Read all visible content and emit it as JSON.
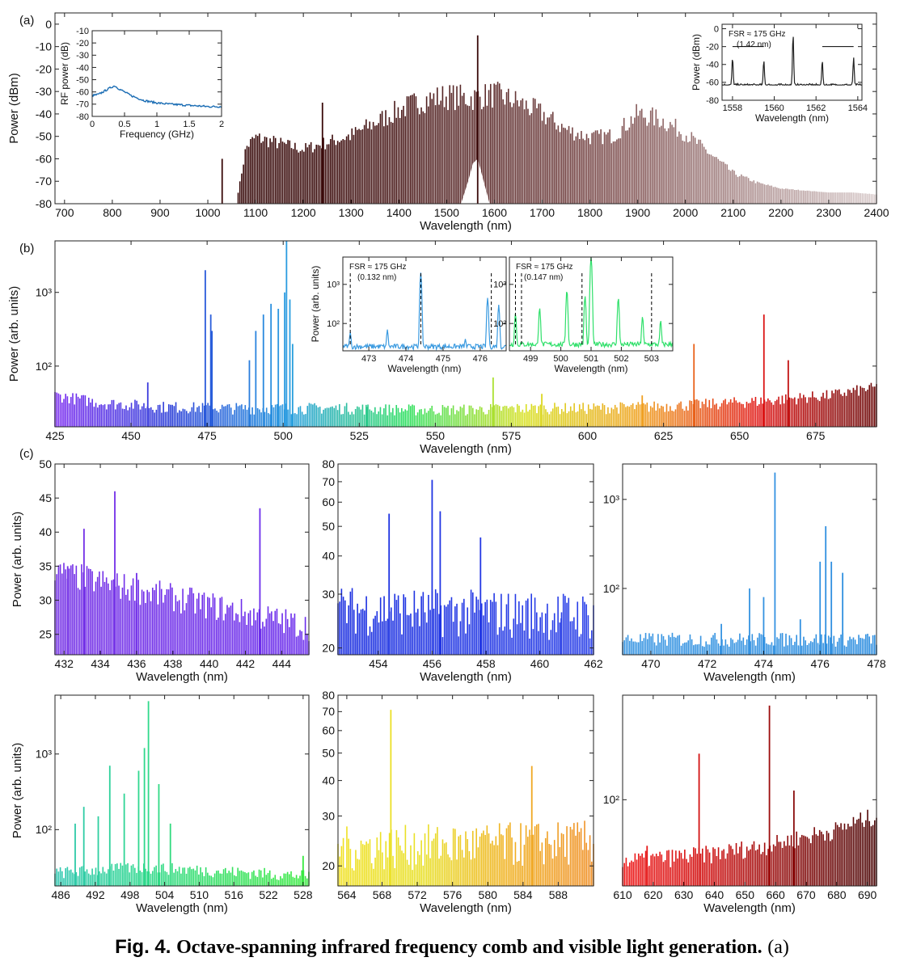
{
  "figure": {
    "caption_label": "Fig. 4.",
    "caption_title": "Octave-spanning infrared frequency comb and visible light generation.",
    "caption_tail": "(a)"
  },
  "chart_data": [
    {
      "id": "a",
      "panel_label": "(a)",
      "type": "line",
      "xlabel": "Wavelength (nm)",
      "ylabel": "Power (dBm)",
      "xlim": [
        680,
        2400
      ],
      "ylim": [
        -80,
        5
      ],
      "xticks": [
        700,
        800,
        900,
        1000,
        1100,
        1200,
        1300,
        1400,
        1500,
        1600,
        1700,
        1800,
        1900,
        2000,
        2100,
        2200,
        2300,
        2400
      ],
      "yticks": [
        -80,
        -70,
        -60,
        -50,
        -40,
        -30,
        -20,
        -10,
        0
      ],
      "grid": false,
      "color_gradient": [
        "#2e0505",
        "#3a0a0a",
        "#7a4a4a",
        "#d9cccc"
      ],
      "envelope": {
        "x": [
          1060,
          1080,
          1100,
          1200,
          1300,
          1400,
          1450,
          1500,
          1550,
          1600,
          1650,
          1700,
          1750,
          1800,
          1850,
          1900,
          1950,
          2000,
          2050,
          2100,
          2150,
          2200,
          2250,
          2300,
          2350,
          2400
        ],
        "y": [
          -80,
          -52,
          -47,
          -53,
          -46,
          -33,
          -28,
          -26,
          -27,
          -25,
          -29,
          -35,
          -43,
          -47,
          -46,
          -35,
          -38,
          -45,
          -55,
          -65,
          -70,
          -73,
          -74,
          -75,
          -75,
          -76
        ]
      },
      "floor": -75,
      "spikes": [
        {
          "x": 1030,
          "y": -60
        },
        {
          "x": 1240,
          "y": -35
        },
        {
          "x": 1565,
          "y": -5
        }
      ],
      "pump_hump": {
        "x": [
          1530,
          1545,
          1555,
          1565,
          1575,
          1590
        ],
        "y": [
          -80,
          -70,
          -62,
          -60,
          -68,
          -80
        ]
      },
      "insets": [
        {
          "id": "a-rf",
          "type": "line",
          "xlabel": "Frequency (GHz)",
          "ylabel": "RF power (dB)",
          "xlim": [
            0,
            2
          ],
          "ylim": [
            -80,
            -10
          ],
          "xticks": [
            0,
            0.5,
            1,
            1.5,
            2
          ],
          "xticklabels": [
            "0",
            "0.5",
            "1",
            "1.5",
            "2"
          ],
          "yticks": [
            -80,
            -70,
            -60,
            -50,
            -40,
            -30,
            -20,
            -10
          ],
          "color": "#1b6db4",
          "x": [
            0,
            0.1,
            0.2,
            0.3,
            0.35,
            0.4,
            0.5,
            0.6,
            0.8,
            1.0,
            1.2,
            1.5,
            1.8,
            2.0
          ],
          "y": [
            -63,
            -62,
            -59,
            -56,
            -55,
            -57,
            -60,
            -63,
            -67,
            -69,
            -70,
            -71,
            -72,
            -72
          ]
        },
        {
          "id": "a-comb",
          "type": "line",
          "xlabel": "Wavelength (nm)",
          "ylabel": "Power (dBm)",
          "xlim": [
            1557.5,
            1564.2
          ],
          "ylim": [
            -80,
            5
          ],
          "xticks": [
            1558,
            1560,
            1562,
            1564
          ],
          "yticks": [
            -80,
            -60,
            -40,
            -20,
            0
          ],
          "color": "#222222",
          "floor": -63,
          "peaks": [
            {
              "x": 1558.0,
              "y": -32
            },
            {
              "x": 1559.5,
              "y": -35
            },
            {
              "x": 1560.9,
              "y": -5
            },
            {
              "x": 1562.3,
              "y": -35
            },
            {
              "x": 1563.8,
              "y": -32
            }
          ],
          "annotation": "FSR ≈ 175 GHz",
          "annotation2": "(1.42 nm)"
        }
      ]
    },
    {
      "id": "b",
      "panel_label": "(b)",
      "type": "line",
      "yscale": "log",
      "xlabel": "Wavelength (nm)",
      "ylabel": "Power (arb. units)",
      "xlim": [
        425,
        695
      ],
      "ylim": [
        15,
        5000
      ],
      "xticks": [
        425,
        450,
        475,
        500,
        525,
        550,
        575,
        600,
        625,
        650,
        675
      ],
      "yticks": [
        100,
        1000
      ],
      "yticklabels": [
        "10²",
        "10³"
      ],
      "grid": false,
      "color_gradient": [
        "#7b2cf0",
        "#2a3fd8",
        "#2a9ee0",
        "#2fe060",
        "#d8e020",
        "#f0a020",
        "#e01515",
        "#6a0808"
      ],
      "baseline": {
        "x": [
          425,
          440,
          460,
          480,
          500,
          520,
          540,
          560,
          580,
          600,
          620,
          640,
          660,
          680,
          695
        ],
        "y": [
          33,
          26,
          23,
          22,
          22,
          22,
          21,
          21,
          22,
          22,
          23,
          25,
          28,
          33,
          42
        ]
      },
      "spikes": [
        {
          "x": 455.5,
          "y": 60
        },
        {
          "x": 474.4,
          "y": 2000
        },
        {
          "x": 476.2,
          "y": 500
        },
        {
          "x": 476.6,
          "y": 300
        },
        {
          "x": 488.9,
          "y": 120
        },
        {
          "x": 491,
          "y": 300
        },
        {
          "x": 493.5,
          "y": 500
        },
        {
          "x": 496,
          "y": 700
        },
        {
          "x": 498.4,
          "y": 600
        },
        {
          "x": 500.5,
          "y": 1000
        },
        {
          "x": 501.1,
          "y": 5000
        },
        {
          "x": 502.2,
          "y": 800
        },
        {
          "x": 503.1,
          "y": 200
        },
        {
          "x": 527.6,
          "y": 28
        },
        {
          "x": 569,
          "y": 70
        },
        {
          "x": 585,
          "y": 42
        },
        {
          "x": 618,
          "y": 40
        },
        {
          "x": 635,
          "y": 200
        },
        {
          "x": 658,
          "y": 500
        },
        {
          "x": 666,
          "y": 120
        }
      ],
      "insets": [
        {
          "id": "b-1",
          "type": "line",
          "yscale": "log",
          "xlabel": "Wavelength (nm)",
          "ylabel": "Power (arb. units)",
          "xlim": [
            472.3,
            476.7
          ],
          "ylim": [
            20,
            5000
          ],
          "xticks": [
            473,
            474,
            475,
            476
          ],
          "yticks": [
            100,
            1000
          ],
          "yticklabels": [
            "10²",
            "10³"
          ],
          "color": "#3a9ae0",
          "floor": 22,
          "peaks": [
            {
              "x": 472.5,
              "y": 60
            },
            {
              "x": 473.5,
              "y": 70
            },
            {
              "x": 474.4,
              "y": 2000
            },
            {
              "x": 475.6,
              "y": 40
            },
            {
              "x": 476.2,
              "y": 450
            },
            {
              "x": 476.5,
              "y": 300
            }
          ],
          "markers": [
            472.3,
            472.5,
            474.4,
            476.3
          ],
          "annotation": "FSR ≈ 175 GHz",
          "annotation2": "(0.132 nm)"
        },
        {
          "id": "b-2",
          "type": "line",
          "yscale": "log",
          "xlabel": "Wavelength (nm)",
          "ylabel": "",
          "xlim": [
            498.3,
            503.7
          ],
          "ylim": [
            20,
            5000
          ],
          "xticks": [
            499,
            500,
            501,
            502,
            503
          ],
          "yticks": [
            100,
            1000
          ],
          "yticklabels": [
            "10²",
            "10³"
          ],
          "color": "#2fe06a",
          "floor": 25,
          "peaks": [
            {
              "x": 498.5,
              "y": 180
            },
            {
              "x": 499.3,
              "y": 250
            },
            {
              "x": 500.2,
              "y": 700
            },
            {
              "x": 500.8,
              "y": 500
            },
            {
              "x": 501.0,
              "y": 5000
            },
            {
              "x": 501.9,
              "y": 450
            },
            {
              "x": 502.7,
              "y": 150
            },
            {
              "x": 503.3,
              "y": 120
            }
          ],
          "markers": [
            498.5,
            498.7,
            500.7,
            503.0
          ],
          "annotation": "FSR ≈ 175 GHz",
          "annotation2": "(0.147 nm)"
        }
      ]
    },
    {
      "id": "c1",
      "panel_label": "(c)",
      "type": "line",
      "xlabel": "Wavelength (nm)",
      "ylabel": "Power (arb. units)",
      "xlim": [
        431.5,
        445.5
      ],
      "ylim": [
        22,
        50
      ],
      "xticks": [
        432,
        434,
        436,
        438,
        440,
        442,
        444
      ],
      "yticks": [
        25,
        30,
        35,
        40,
        45,
        50
      ],
      "color_gradient": [
        "#7430e6",
        "#6a2cec"
      ],
      "baseline": {
        "x": [
          431.5,
          445.5
        ],
        "y": [
          32,
          24
        ]
      },
      "spikes": [
        {
          "x": 433.1,
          "y": 40.5
        },
        {
          "x": 434.8,
          "y": 46
        },
        {
          "x": 442.8,
          "y": 43.5
        },
        {
          "x": 436,
          "y": 34
        },
        {
          "x": 432.2,
          "y": 35
        }
      ]
    },
    {
      "id": "c2",
      "type": "line",
      "yscale": "log",
      "xlabel": "Wavelength (nm)",
      "ylabel": "",
      "xlim": [
        452.5,
        462
      ],
      "ylim": [
        19,
        80
      ],
      "xticks": [
        454,
        456,
        458,
        460,
        462
      ],
      "yticks": [
        20,
        30,
        40,
        50,
        60,
        70,
        80
      ],
      "color_gradient": [
        "#1a2ee0",
        "#2a40e8"
      ],
      "baseline": {
        "x": [
          452.5,
          462
        ],
        "y": [
          22,
          21
        ]
      },
      "spikes": [
        {
          "x": 454.4,
          "y": 55
        },
        {
          "x": 456.0,
          "y": 71
        },
        {
          "x": 456.3,
          "y": 56
        },
        {
          "x": 457.8,
          "y": 46
        },
        {
          "x": 460.8,
          "y": 25
        }
      ]
    },
    {
      "id": "c3",
      "type": "line",
      "yscale": "log",
      "xlabel": "Wavelength (nm)",
      "ylabel": "",
      "xlim": [
        469,
        478
      ],
      "ylim": [
        18,
        2500
      ],
      "xticks": [
        470,
        472,
        474,
        476,
        478
      ],
      "yticks": [
        100,
        1000
      ],
      "yticklabels": [
        "10²",
        "10³"
      ],
      "color_gradient": [
        "#3a96e2",
        "#2f8fe0"
      ],
      "baseline": {
        "x": [
          469,
          478
        ],
        "y": [
          22,
          22
        ]
      },
      "spikes": [
        {
          "x": 472.5,
          "y": 40
        },
        {
          "x": 473.5,
          "y": 100
        },
        {
          "x": 474.0,
          "y": 80
        },
        {
          "x": 474.4,
          "y": 2000
        },
        {
          "x": 475.3,
          "y": 45
        },
        {
          "x": 476.0,
          "y": 200
        },
        {
          "x": 476.2,
          "y": 500
        },
        {
          "x": 476.4,
          "y": 200
        },
        {
          "x": 476.8,
          "y": 150
        }
      ]
    },
    {
      "id": "c4",
      "type": "line",
      "yscale": "log",
      "xlabel": "Wavelength (nm)",
      "ylabel": "Power (arb. units)",
      "xlim": [
        485,
        529
      ],
      "ylim": [
        18,
        6000
      ],
      "xticks": [
        486,
        492,
        498,
        504,
        510,
        516,
        522,
        528
      ],
      "yticks": [
        100,
        1000
      ],
      "yticklabels": [
        "10²",
        "10³"
      ],
      "color_gradient": [
        "#2ec6b0",
        "#30d890",
        "#34e060",
        "#3aea40"
      ],
      "baseline": {
        "x": [
          485,
          500,
          529
        ],
        "y": [
          22,
          26,
          20
        ]
      },
      "spikes": [
        {
          "x": 488.5,
          "y": 120
        },
        {
          "x": 490,
          "y": 200
        },
        {
          "x": 492.5,
          "y": 150
        },
        {
          "x": 494.5,
          "y": 700
        },
        {
          "x": 497,
          "y": 300
        },
        {
          "x": 499.5,
          "y": 600
        },
        {
          "x": 500.5,
          "y": 1200
        },
        {
          "x": 501.2,
          "y": 5000
        },
        {
          "x": 503,
          "y": 400
        },
        {
          "x": 505,
          "y": 120
        },
        {
          "x": 528,
          "y": 45
        }
      ]
    },
    {
      "id": "c5",
      "type": "line",
      "yscale": "log",
      "xlabel": "Wavelength (nm)",
      "ylabel": "",
      "xlim": [
        563,
        592
      ],
      "ylim": [
        17,
        80
      ],
      "xticks": [
        564,
        568,
        572,
        576,
        580,
        584,
        588
      ],
      "yticks": [
        20,
        30,
        40,
        50,
        60,
        70,
        80
      ],
      "color_gradient": [
        "#f0e020",
        "#e8e028",
        "#f0b020",
        "#f09028"
      ],
      "baseline": {
        "x": [
          563,
          592
        ],
        "y": [
          19,
          20
        ]
      },
      "spikes": [
        {
          "x": 569,
          "y": 71
        },
        {
          "x": 585,
          "y": 45
        }
      ]
    },
    {
      "id": "c6",
      "type": "line",
      "yscale": "log",
      "xlabel": "Wavelength (nm)",
      "ylabel": "",
      "xlim": [
        610,
        693
      ],
      "ylim": [
        18,
        800
      ],
      "xticks": [
        610,
        620,
        630,
        640,
        650,
        660,
        670,
        680,
        690
      ],
      "yticks": [
        100
      ],
      "yticklabels": [
        "10²"
      ],
      "color_gradient": [
        "#ef1a1a",
        "#d01010",
        "#8a0a0a",
        "#4a0606"
      ],
      "baseline": {
        "x": [
          610,
          640,
          660,
          680,
          693
        ],
        "y": [
          24,
          28,
          34,
          45,
          60
        ]
      },
      "spikes": [
        {
          "x": 618,
          "y": 40
        },
        {
          "x": 635,
          "y": 250
        },
        {
          "x": 658,
          "y": 650
        },
        {
          "x": 666,
          "y": 120
        }
      ]
    }
  ]
}
